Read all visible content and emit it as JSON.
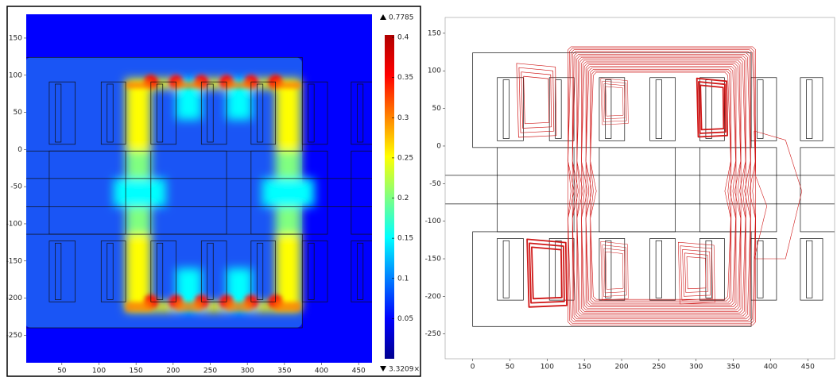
{
  "chart_data": [
    {
      "type": "heatmap",
      "xlim": [
        2,
        468
      ],
      "ylim": [
        -287,
        182
      ],
      "xticks": [
        50,
        100,
        150,
        200,
        250,
        300,
        350,
        400,
        450
      ],
      "yticks": [
        150,
        100,
        50,
        0,
        -50,
        -100,
        -150,
        -200,
        -250
      ],
      "colorbar": {
        "lim": [
          0,
          0.403
        ],
        "ticks": [
          0.4,
          0.35,
          0.3,
          0.25,
          0.2,
          0.15,
          0.1,
          0.05
        ],
        "max": 0.7785,
        "min_label": "3.3209×",
        "colors": [
          "#00008f",
          "#0000ff",
          "#0080ff",
          "#00ffff",
          "#80ff80",
          "#ffff00",
          "#ff8000",
          "#ff0000",
          "#b00000"
        ]
      }
    },
    {
      "type": "streamline",
      "xlim": [
        -37,
        486
      ],
      "ylim": [
        -283,
        171
      ],
      "xticks": [
        0,
        50,
        100,
        150,
        200,
        250,
        300,
        350,
        400,
        450
      ],
      "yticks": [
        150,
        100,
        50,
        0,
        -50,
        -100,
        -150,
        -200,
        -250
      ],
      "color": "#d01818"
    }
  ]
}
